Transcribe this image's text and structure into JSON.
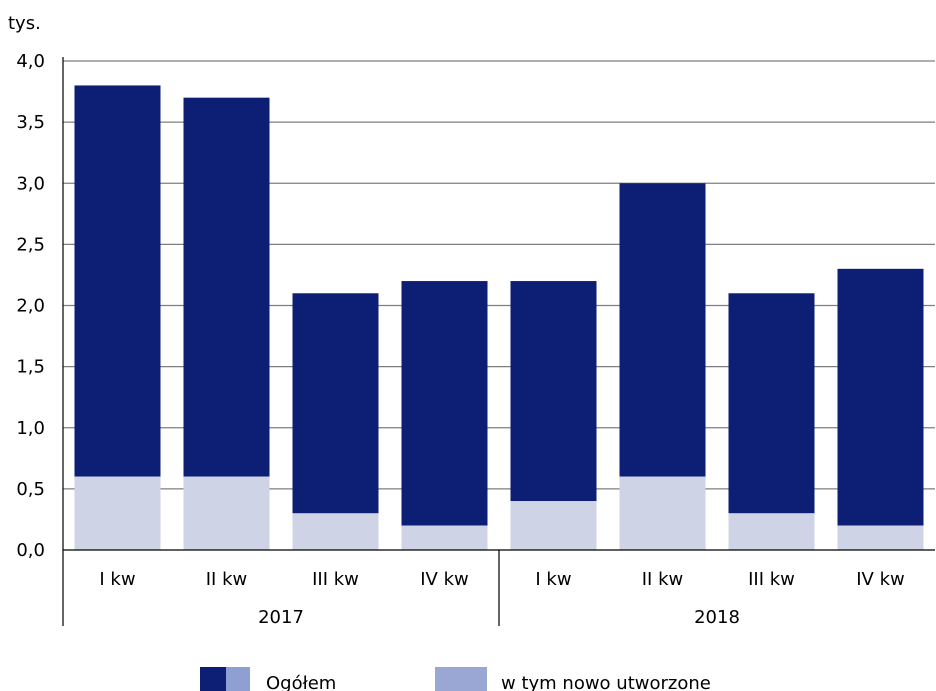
{
  "chart_data": {
    "type": "bar",
    "stacked": true,
    "unit_label": "tys.",
    "ylim": [
      0,
      4
    ],
    "y_ticks": [
      "0,0",
      "0,5",
      "1,0",
      "1,5",
      "2,0",
      "2,5",
      "3,0",
      "3,5",
      "4,0"
    ],
    "categories": [
      "I kw",
      "II kw",
      "III kw",
      "IV kw",
      "I kw",
      "II kw",
      "III kw",
      "IV kw"
    ],
    "groups": [
      {
        "label": "2017",
        "count": 4
      },
      {
        "label": "2018",
        "count": 4
      }
    ],
    "totals": [
      3.8,
      3.7,
      2.1,
      2.2,
      2.2,
      3.0,
      2.1,
      2.3
    ],
    "new_created": [
      0.6,
      0.6,
      0.3,
      0.2,
      0.4,
      0.6,
      0.3,
      0.2
    ],
    "grid": true,
    "legend_position": "bottom",
    "legend": [
      {
        "label": "Ogółem",
        "colors": [
          "#0d1f74",
          "#8e9fd1"
        ]
      },
      {
        "label": "w tym nowo utworzone",
        "colors": [
          "#9aa6d4"
        ]
      }
    ],
    "colors": {
      "total": "#0d1f74",
      "new": "#cfd3e6",
      "grid": "#7f7f7f",
      "axis": "#000000"
    }
  }
}
